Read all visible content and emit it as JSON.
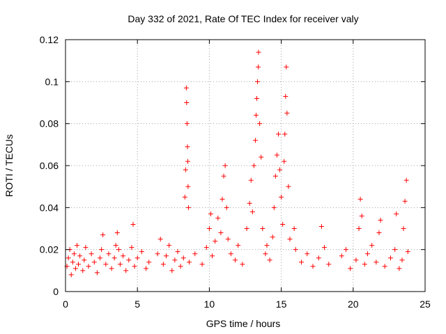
{
  "chart_data": {
    "type": "scatter",
    "title": "Day 332 of 2021, Rate Of TEC Index for receiver valy",
    "xlabel": "GPS time / hours",
    "ylabel": "ROTI / TECUs",
    "xlim": [
      0,
      25
    ],
    "ylim": [
      0,
      0.12
    ],
    "xticks": [
      0,
      5,
      10,
      15,
      20,
      25
    ],
    "xtick_labels": [
      "0",
      "5",
      "10",
      "15",
      "20",
      "25"
    ],
    "yticks": [
      0,
      0.02,
      0.04,
      0.06,
      0.08,
      0.1,
      0.12
    ],
    "ytick_labels": [
      "0",
      "0.02",
      "0.04",
      "0.06",
      "0.08",
      "0.1",
      "0.12"
    ],
    "grid": true,
    "marker": "+",
    "marker_color": "#ff0000",
    "series": [
      {
        "name": "ROTI",
        "points": [
          [
            0.1,
            0.012
          ],
          [
            0.2,
            0.016
          ],
          [
            0.3,
            0.02
          ],
          [
            0.4,
            0.008
          ],
          [
            0.5,
            0.014
          ],
          [
            0.6,
            0.018
          ],
          [
            0.7,
            0.011
          ],
          [
            0.8,
            0.022
          ],
          [
            0.9,
            0.013
          ],
          [
            1.0,
            0.017
          ],
          [
            1.2,
            0.01
          ],
          [
            1.3,
            0.015
          ],
          [
            1.4,
            0.021
          ],
          [
            1.6,
            0.012
          ],
          [
            1.8,
            0.018
          ],
          [
            2.0,
            0.014
          ],
          [
            2.2,
            0.009
          ],
          [
            2.4,
            0.016
          ],
          [
            2.5,
            0.02
          ],
          [
            2.6,
            0.027
          ],
          [
            2.8,
            0.013
          ],
          [
            3.0,
            0.018
          ],
          [
            3.2,
            0.011
          ],
          [
            3.4,
            0.016
          ],
          [
            3.5,
            0.022
          ],
          [
            3.6,
            0.028
          ],
          [
            3.7,
            0.02
          ],
          [
            3.8,
            0.013
          ],
          [
            4.0,
            0.017
          ],
          [
            4.2,
            0.01
          ],
          [
            4.4,
            0.015
          ],
          [
            4.6,
            0.021
          ],
          [
            4.7,
            0.032
          ],
          [
            4.8,
            0.012
          ],
          [
            5.0,
            0.016
          ],
          [
            5.3,
            0.019
          ],
          [
            5.6,
            0.011
          ],
          [
            5.8,
            0.014
          ],
          [
            6.4,
            0.018
          ],
          [
            6.6,
            0.025
          ],
          [
            6.8,
            0.013
          ],
          [
            7.0,
            0.017
          ],
          [
            7.2,
            0.022
          ],
          [
            7.4,
            0.01
          ],
          [
            7.6,
            0.015
          ],
          [
            7.8,
            0.019
          ],
          [
            8.0,
            0.012
          ],
          [
            8.2,
            0.016
          ],
          [
            8.3,
            0.045
          ],
          [
            8.35,
            0.058
          ],
          [
            8.4,
            0.097
          ],
          [
            8.42,
            0.09
          ],
          [
            8.45,
            0.08
          ],
          [
            8.48,
            0.069
          ],
          [
            8.5,
            0.062
          ],
          [
            8.52,
            0.05
          ],
          [
            8.55,
            0.04
          ],
          [
            8.6,
            0.014
          ],
          [
            9.0,
            0.018
          ],
          [
            9.5,
            0.013
          ],
          [
            9.8,
            0.021
          ],
          [
            10.0,
            0.03
          ],
          [
            10.1,
            0.037
          ],
          [
            10.2,
            0.017
          ],
          [
            10.4,
            0.024
          ],
          [
            10.6,
            0.035
          ],
          [
            10.8,
            0.028
          ],
          [
            10.9,
            0.044
          ],
          [
            11.0,
            0.055
          ],
          [
            11.1,
            0.06
          ],
          [
            11.2,
            0.04
          ],
          [
            11.3,
            0.025
          ],
          [
            11.5,
            0.018
          ],
          [
            11.8,
            0.015
          ],
          [
            12.0,
            0.022
          ],
          [
            12.3,
            0.013
          ],
          [
            12.6,
            0.03
          ],
          [
            12.8,
            0.042
          ],
          [
            12.9,
            0.053
          ],
          [
            13.0,
            0.038
          ],
          [
            13.1,
            0.06
          ],
          [
            13.2,
            0.072
          ],
          [
            13.25,
            0.084
          ],
          [
            13.3,
            0.092
          ],
          [
            13.35,
            0.1
          ],
          [
            13.4,
            0.107
          ],
          [
            13.42,
            0.114
          ],
          [
            13.5,
            0.08
          ],
          [
            13.6,
            0.064
          ],
          [
            13.7,
            0.03
          ],
          [
            13.9,
            0.018
          ],
          [
            14.0,
            0.022
          ],
          [
            14.2,
            0.015
          ],
          [
            14.4,
            0.026
          ],
          [
            14.5,
            0.04
          ],
          [
            14.6,
            0.055
          ],
          [
            14.7,
            0.065
          ],
          [
            14.8,
            0.075
          ],
          [
            14.9,
            0.058
          ],
          [
            15.0,
            0.045
          ],
          [
            15.1,
            0.032
          ],
          [
            15.2,
            0.062
          ],
          [
            15.25,
            0.075
          ],
          [
            15.3,
            0.093
          ],
          [
            15.35,
            0.107
          ],
          [
            15.4,
            0.085
          ],
          [
            15.5,
            0.05
          ],
          [
            15.6,
            0.025
          ],
          [
            15.9,
            0.03
          ],
          [
            16.0,
            0.02
          ],
          [
            16.4,
            0.014
          ],
          [
            16.8,
            0.018
          ],
          [
            17.2,
            0.012
          ],
          [
            17.6,
            0.016
          ],
          [
            17.8,
            0.031
          ],
          [
            18.0,
            0.021
          ],
          [
            18.3,
            0.013
          ],
          [
            19.2,
            0.017
          ],
          [
            19.5,
            0.02
          ],
          [
            19.8,
            0.011
          ],
          [
            20.2,
            0.015
          ],
          [
            20.4,
            0.03
          ],
          [
            20.5,
            0.044
          ],
          [
            20.6,
            0.036
          ],
          [
            20.8,
            0.013
          ],
          [
            21.0,
            0.018
          ],
          [
            21.3,
            0.022
          ],
          [
            21.6,
            0.014
          ],
          [
            21.8,
            0.028
          ],
          [
            21.9,
            0.034
          ],
          [
            22.2,
            0.012
          ],
          [
            22.6,
            0.016
          ],
          [
            22.9,
            0.02
          ],
          [
            23.0,
            0.037
          ],
          [
            23.2,
            0.011
          ],
          [
            23.4,
            0.015
          ],
          [
            23.5,
            0.03
          ],
          [
            23.6,
            0.043
          ],
          [
            23.7,
            0.053
          ],
          [
            23.8,
            0.019
          ]
        ]
      }
    ]
  }
}
